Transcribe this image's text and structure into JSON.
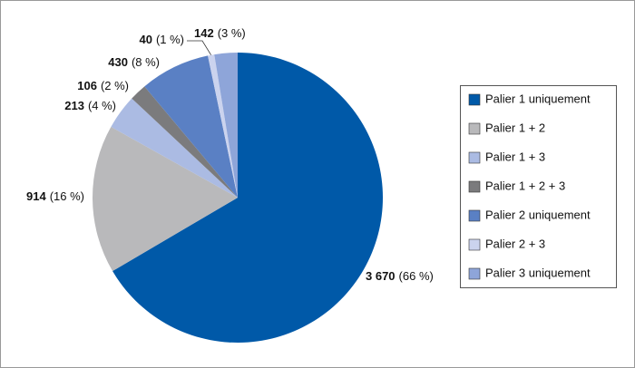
{
  "chart_data": {
    "type": "pie",
    "categories": [
      "Palier 1 uniquement",
      "Palier 1 + 2",
      "Palier 1 + 3",
      "Palier 1 + 2 + 3",
      "Palier 2 uniquement",
      "Palier 2 + 3",
      "Palier 3 uniquement"
    ],
    "values": [
      3670,
      914,
      213,
      106,
      430,
      40,
      142
    ],
    "value_labels": [
      "3 670",
      "914",
      "213",
      "106",
      "430",
      "40",
      "142"
    ],
    "percent_labels": [
      "(66 %)",
      "(16 %)",
      "(4 %)",
      "(2 %)",
      "(8 %)",
      "(1 %)",
      "(3 %)"
    ],
    "colors": [
      "#0059a8",
      "#b9b9bb",
      "#abbbe3",
      "#7b7b7d",
      "#5a80c4",
      "#cbd3ee",
      "#8ea5d9"
    ],
    "legend": "right"
  }
}
